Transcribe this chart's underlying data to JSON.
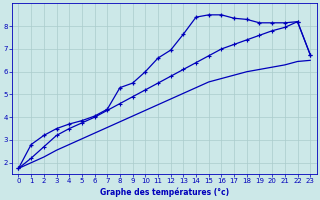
{
  "xlabel": "Graphe des températures (°c)",
  "bg_color": "#cce8e8",
  "grid_color": "#aacccc",
  "line_color": "#0000bb",
  "hours": [
    0,
    1,
    2,
    3,
    4,
    5,
    6,
    7,
    8,
    9,
    10,
    11,
    12,
    13,
    14,
    15,
    16,
    17,
    18,
    19,
    20,
    21,
    22,
    23
  ],
  "temp_main": [
    1.75,
    2.8,
    3.2,
    3.5,
    3.7,
    3.85,
    4.05,
    4.35,
    5.3,
    5.5,
    6.0,
    6.6,
    6.95,
    7.65,
    8.4,
    8.5,
    8.5,
    8.35,
    8.3,
    8.15,
    8.15,
    8.15,
    8.2,
    6.75
  ],
  "temp_upper_diag": [
    1.75,
    2.2,
    2.7,
    3.2,
    3.5,
    3.75,
    4.0,
    4.3,
    4.6,
    4.9,
    5.2,
    5.5,
    5.8,
    6.1,
    6.4,
    6.7,
    7.0,
    7.2,
    7.4,
    7.6,
    7.8,
    7.95,
    8.2,
    6.75
  ],
  "temp_lower_diag": [
    1.75,
    2.0,
    2.25,
    2.55,
    2.8,
    3.05,
    3.3,
    3.55,
    3.8,
    4.05,
    4.3,
    4.55,
    4.8,
    5.05,
    5.3,
    5.55,
    5.7,
    5.85,
    6.0,
    6.1,
    6.2,
    6.3,
    6.45,
    6.5
  ],
  "ylim": [
    1.5,
    9.0
  ],
  "xlim": [
    -0.5,
    23.5
  ],
  "yticks": [
    2,
    3,
    4,
    5,
    6,
    7,
    8
  ],
  "xticks": [
    0,
    1,
    2,
    3,
    4,
    5,
    6,
    7,
    8,
    9,
    10,
    11,
    12,
    13,
    14,
    15,
    16,
    17,
    18,
    19,
    20,
    21,
    22,
    23
  ]
}
